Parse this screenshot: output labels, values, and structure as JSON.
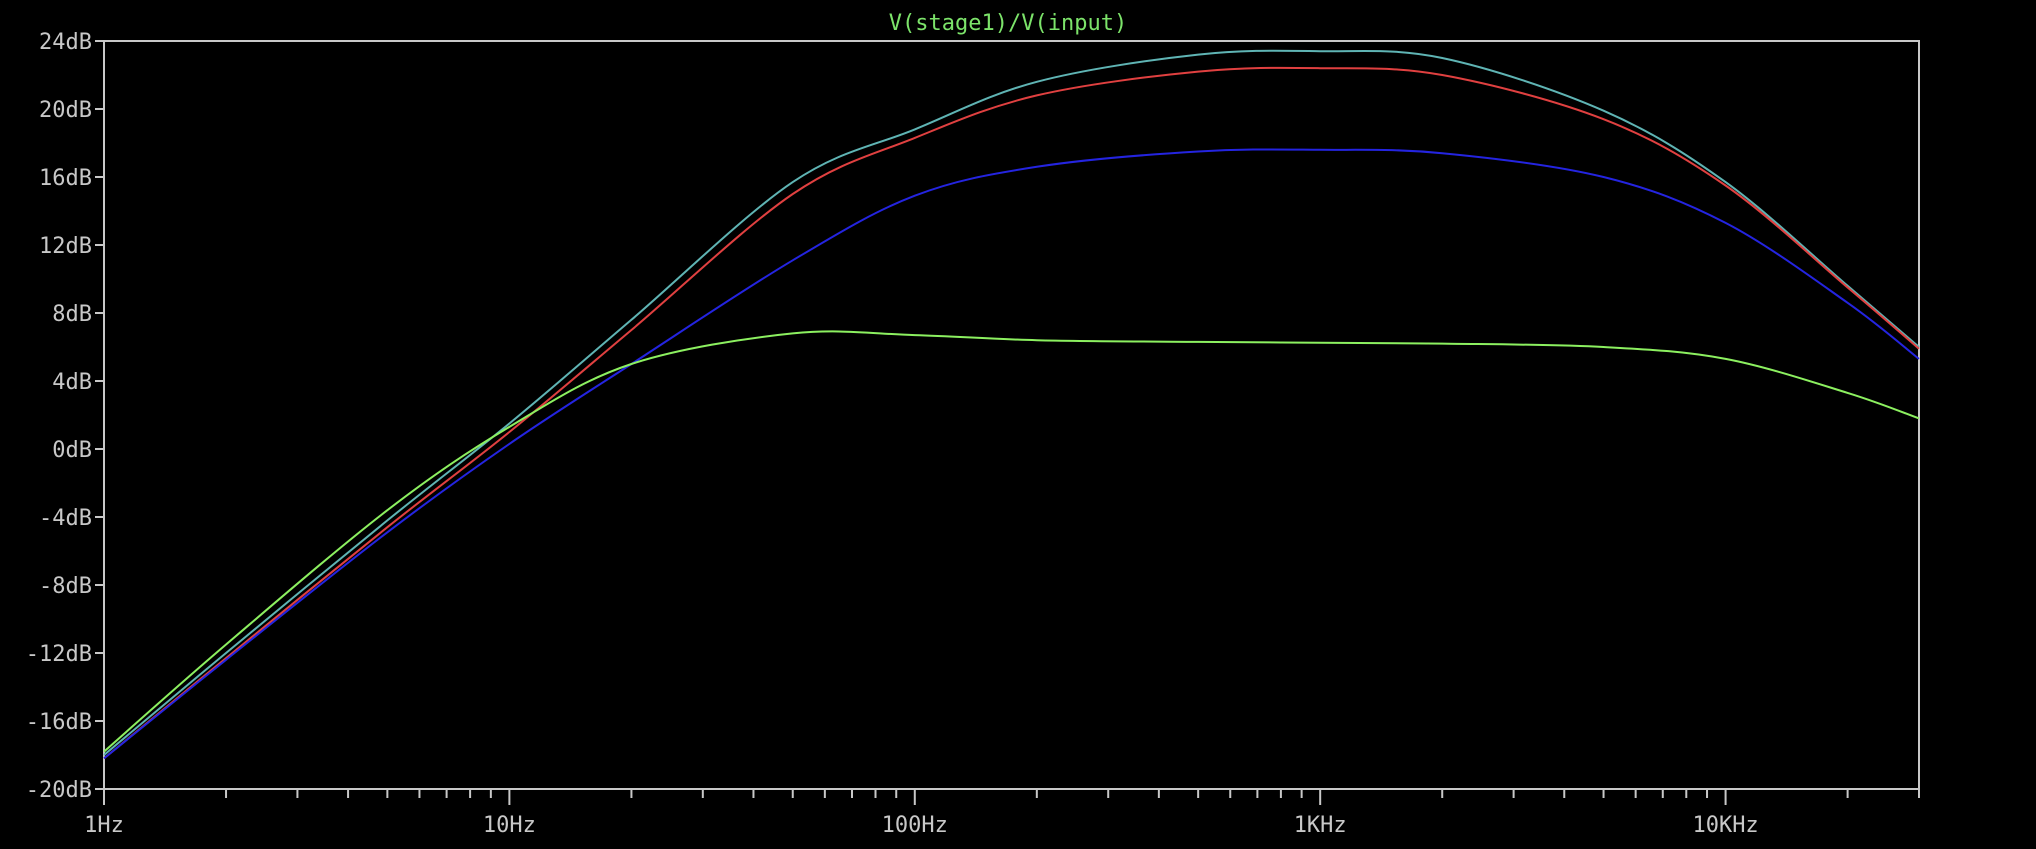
{
  "chart_data": {
    "type": "line",
    "title": "V(stage1)/V(input)",
    "title_color": "#7ce36a",
    "x_scale": "log",
    "xlim": [
      1,
      30000
    ],
    "ylim": [
      -20,
      24
    ],
    "grid": false,
    "background": "#000000",
    "axis_color": "#c8c8c8",
    "x_ticks": [
      {
        "value": 1,
        "label": "1Hz"
      },
      {
        "value": 10,
        "label": "10Hz"
      },
      {
        "value": 100,
        "label": "100Hz"
      },
      {
        "value": 1000,
        "label": "1KHz"
      },
      {
        "value": 10000,
        "label": "10KHz"
      }
    ],
    "y_ticks": [
      {
        "value": 24,
        "label": "24dB"
      },
      {
        "value": 20,
        "label": "20dB"
      },
      {
        "value": 16,
        "label": "16dB"
      },
      {
        "value": 12,
        "label": "12dB"
      },
      {
        "value": 8,
        "label": "8dB"
      },
      {
        "value": 4,
        "label": "4dB"
      },
      {
        "value": 0,
        "label": "0dB"
      },
      {
        "value": -4,
        "label": "-4dB"
      },
      {
        "value": -8,
        "label": "-8dB"
      },
      {
        "value": -12,
        "label": "-12dB"
      },
      {
        "value": -16,
        "label": "-16dB"
      },
      {
        "value": -20,
        "label": "-20dB"
      }
    ],
    "x": [
      1,
      2,
      5,
      10,
      20,
      50,
      100,
      200,
      500,
      1000,
      2000,
      5000,
      10000,
      20000,
      30000
    ],
    "series": [
      {
        "color": "#5fb4b4",
        "values": [
          -18.0,
          -12.0,
          -4.2,
          1.5,
          7.6,
          15.7,
          18.8,
          21.6,
          23.2,
          23.4,
          23.0,
          19.9,
          15.7,
          9.6,
          6.0
        ]
      },
      {
        "color": "#e04040",
        "values": [
          -18.2,
          -12.3,
          -4.6,
          1.0,
          7.0,
          15.0,
          18.3,
          20.8,
          22.2,
          22.4,
          22.0,
          19.4,
          15.5,
          9.5,
          5.9
        ]
      },
      {
        "color": "#2424e0",
        "values": [
          -18.2,
          -12.4,
          -4.9,
          0.3,
          5.0,
          11.1,
          14.9,
          16.6,
          17.5,
          17.6,
          17.4,
          16.0,
          13.3,
          8.6,
          5.3
        ]
      },
      {
        "color": "#8cf060",
        "values": [
          -17.8,
          -11.5,
          -3.6,
          1.3,
          5.0,
          6.8,
          6.7,
          6.4,
          6.3,
          6.25,
          6.2,
          6.0,
          5.3,
          3.3,
          1.8
        ]
      }
    ]
  }
}
